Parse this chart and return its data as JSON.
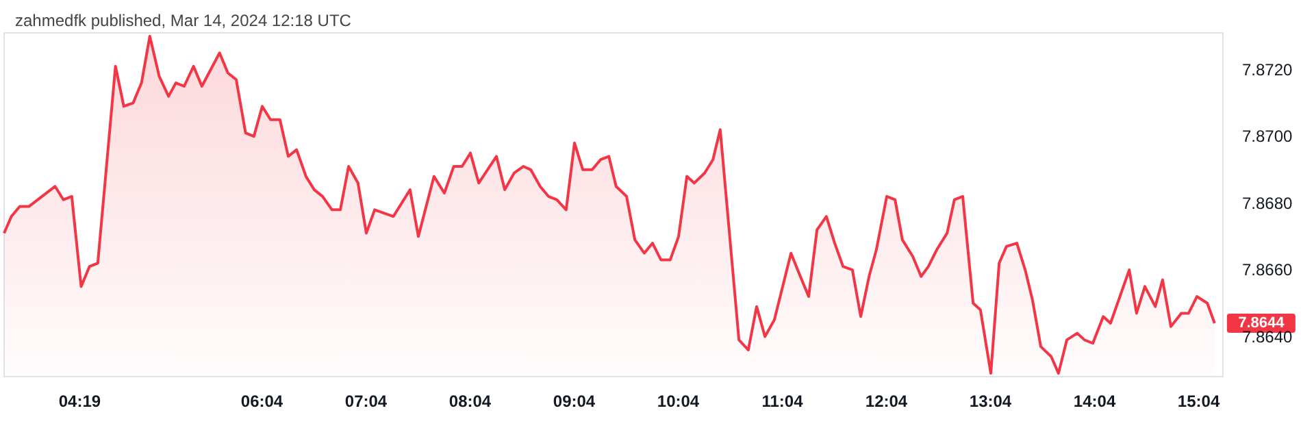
{
  "chart_data": {
    "type": "area",
    "title": "zahmedfk published, Mar 14, 2024 12:18 UTC",
    "xlim": [
      3.59,
      15.3
    ],
    "xticks": [
      {
        "value": 4.3167,
        "label": "04:19"
      },
      {
        "value": 6.0667,
        "label": "06:04"
      },
      {
        "value": 7.0667,
        "label": "07:04"
      },
      {
        "value": 8.0667,
        "label": "08:04"
      },
      {
        "value": 9.0667,
        "label": "09:04"
      },
      {
        "value": 10.0667,
        "label": "10:04"
      },
      {
        "value": 11.0667,
        "label": "11:04"
      },
      {
        "value": 12.0667,
        "label": "12:04"
      },
      {
        "value": 13.0667,
        "label": "13:04"
      },
      {
        "value": 14.0667,
        "label": "14:04"
      },
      {
        "value": 15.0667,
        "label": "15:04"
      }
    ],
    "ylim": [
      7.8628,
      7.8731
    ],
    "yticks": [
      {
        "value": 7.864,
        "label": "7.8640"
      },
      {
        "value": 7.866,
        "label": "7.8660"
      },
      {
        "value": 7.868,
        "label": "7.8680"
      },
      {
        "value": 7.87,
        "label": "7.8700"
      },
      {
        "value": 7.872,
        "label": "7.8720"
      }
    ],
    "x": [
      3.59,
      3.66,
      3.74,
      3.83,
      4.08,
      4.16,
      4.24,
      4.33,
      4.41,
      4.49,
      4.66,
      4.74,
      4.83,
      4.91,
      4.99,
      5.08,
      5.17,
      5.24,
      5.32,
      5.41,
      5.49,
      5.66,
      5.74,
      5.82,
      5.91,
      5.99,
      6.07,
      6.15,
      6.24,
      6.32,
      6.4,
      6.49,
      6.57,
      6.65,
      6.74,
      6.82,
      6.9,
      6.99,
      7.07,
      7.15,
      7.33,
      7.49,
      7.57,
      7.72,
      7.82,
      7.91,
      7.99,
      8.07,
      8.15,
      8.32,
      8.4,
      8.49,
      8.58,
      8.65,
      8.74,
      8.82,
      8.9,
      8.99,
      9.07,
      9.15,
      9.24,
      9.32,
      9.4,
      9.47,
      9.57,
      9.65,
      9.74,
      9.82,
      9.9,
      9.99,
      10.07,
      10.15,
      10.22,
      10.32,
      10.4,
      10.47,
      10.65,
      10.74,
      10.82,
      10.9,
      10.99,
      11.07,
      11.15,
      11.24,
      11.32,
      11.4,
      11.49,
      11.57,
      11.65,
      11.74,
      11.82,
      11.9,
      11.97,
      12.07,
      12.15,
      12.22,
      12.32,
      12.4,
      12.47,
      12.55,
      12.65,
      12.72,
      12.8,
      12.9,
      12.97,
      13.07,
      13.15,
      13.22,
      13.32,
      13.4,
      13.47,
      13.55,
      13.65,
      13.72,
      13.8,
      13.9,
      13.97,
      14.05,
      14.15,
      14.22,
      14.4,
      14.47,
      14.55,
      14.65,
      14.72,
      14.8,
      14.9,
      14.97,
      15.05,
      15.15,
      15.22
    ],
    "series": [
      {
        "color": "#f23645",
        "values": [
          7.8671,
          7.8676,
          7.8679,
          7.8679,
          7.8685,
          7.8681,
          7.8682,
          7.8655,
          7.8661,
          7.8662,
          7.8721,
          7.8709,
          7.871,
          7.8716,
          7.873,
          7.8718,
          7.8712,
          7.8716,
          7.8715,
          7.8721,
          7.8715,
          7.8725,
          7.8719,
          7.8717,
          7.8701,
          7.87,
          7.8709,
          7.8705,
          7.8705,
          7.8694,
          7.8696,
          7.8688,
          7.8684,
          7.8682,
          7.8678,
          7.8678,
          7.8691,
          7.8686,
          7.8671,
          7.8678,
          7.8676,
          7.8684,
          7.867,
          7.8688,
          7.8683,
          7.8691,
          7.8691,
          7.8695,
          7.8686,
          7.8694,
          7.8684,
          7.8689,
          7.8691,
          7.869,
          7.8685,
          7.8682,
          7.8681,
          7.8678,
          7.8698,
          7.869,
          7.869,
          7.8693,
          7.8694,
          7.8685,
          7.8682,
          7.8669,
          7.8665,
          7.8668,
          7.8663,
          7.8663,
          7.867,
          7.8688,
          7.8686,
          7.8689,
          7.8693,
          7.8702,
          7.8639,
          7.8636,
          7.8649,
          7.864,
          7.8645,
          7.8655,
          7.8665,
          7.8658,
          7.8652,
          7.8672,
          7.8676,
          7.8668,
          7.8661,
          7.866,
          7.8646,
          7.8658,
          7.8666,
          7.8682,
          7.8681,
          7.8669,
          7.8664,
          7.8658,
          7.8661,
          7.8666,
          7.8671,
          7.8681,
          7.8682,
          7.865,
          7.8648,
          7.8629,
          7.8662,
          7.8667,
          7.8668,
          7.866,
          7.8651,
          7.8637,
          7.8634,
          7.8629,
          7.8639,
          7.8641,
          7.8639,
          7.8638,
          7.8646,
          7.8644,
          7.866,
          7.8647,
          7.8655,
          7.8649,
          7.8657,
          7.8643,
          7.8647,
          7.8647,
          7.8652,
          7.865,
          7.8644
        ]
      }
    ],
    "annotations": [
      {
        "text": "7.8644",
        "x": 15.22,
        "y": 7.8644
      }
    ]
  }
}
